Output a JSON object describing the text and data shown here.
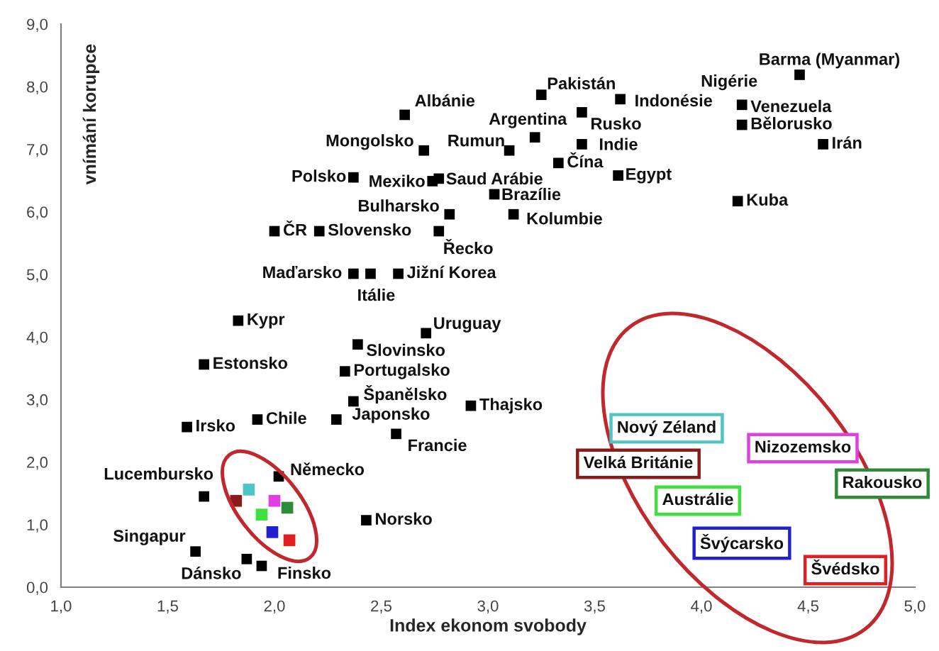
{
  "chart_data": {
    "type": "scatter",
    "xlabel": "Index ekonom svobody",
    "ylabel": "vnímání korupce",
    "xlim": [
      1,
      5
    ],
    "ylim": [
      0,
      9
    ],
    "xticks": [
      {
        "value": 1,
        "label": "1,0"
      },
      {
        "value": 1.5,
        "label": "1,5"
      },
      {
        "value": 2,
        "label": "2,0"
      },
      {
        "value": 2.5,
        "label": "2,5"
      },
      {
        "value": 3,
        "label": "3,0"
      },
      {
        "value": 3.5,
        "label": "3,5"
      },
      {
        "value": 4,
        "label": "4,0"
      },
      {
        "value": 4.5,
        "label": "4,5"
      },
      {
        "value": 5,
        "label": "5,0"
      }
    ],
    "yticks": [
      {
        "value": 0,
        "label": "0,0"
      },
      {
        "value": 1,
        "label": "1,0"
      },
      {
        "value": 2,
        "label": "2,0"
      },
      {
        "value": 3,
        "label": "3,0"
      },
      {
        "value": 4,
        "label": "4,0"
      },
      {
        "value": 5,
        "label": "5,0"
      },
      {
        "value": 6,
        "label": "6,0"
      },
      {
        "value": 7,
        "label": "7,0"
      },
      {
        "value": 8,
        "label": "8,0"
      },
      {
        "value": 9,
        "label": "9,0"
      }
    ],
    "marker": "square",
    "grid": false,
    "legend": false,
    "series": [
      {
        "color": "#000000",
        "x": [
          4.46,
          3.25,
          3.62,
          3.44,
          3.22,
          3.1,
          3.44,
          3.33,
          3.61,
          3.03,
          3.12,
          4.19,
          4.19,
          4.57,
          4.17,
          2.61,
          2.7,
          2.37,
          2.74,
          2.77,
          2.82,
          2.0,
          2.21,
          2.77,
          2.37,
          2.45,
          2.58,
          1.83,
          2.71,
          2.39,
          1.67,
          2.33,
          2.37,
          2.29,
          2.92,
          1.92,
          1.59,
          2.57,
          2.02,
          1.67,
          2.43,
          1.63,
          1.87,
          1.94
        ],
        "values": [
          8.19,
          7.87,
          7.8,
          7.59,
          7.19,
          6.98,
          7.08,
          6.78,
          6.58,
          6.28,
          5.96,
          7.71,
          7.39,
          7.08,
          6.17,
          7.55,
          6.98,
          6.55,
          6.49,
          6.53,
          5.96,
          5.69,
          5.69,
          5.69,
          5.01,
          5.01,
          5.01,
          4.26,
          4.06,
          3.88,
          3.56,
          3.45,
          2.97,
          2.68,
          2.9,
          2.68,
          2.56,
          2.45,
          1.77,
          1.45,
          1.07,
          0.57,
          0.45,
          0.34
        ]
      },
      {
        "colors": [
          "#4fc4c4",
          "#8b1a1a",
          "#e040e0",
          "#2e8b3a",
          "#40e040",
          "#2020d0",
          "#e02020"
        ],
        "x": [
          1.88,
          1.82,
          2.0,
          2.06,
          1.94,
          1.99,
          2.07
        ],
        "values": [
          1.56,
          1.38,
          1.38,
          1.27,
          1.16,
          0.88,
          0.75
        ]
      }
    ],
    "annotations": [
      {
        "text": "Barma (Myanmar)",
        "x": 4.46,
        "y": 8.19
      },
      {
        "text": "Pakistán",
        "x": 3.25,
        "y": 7.87
      },
      {
        "text": "Indonésie",
        "x": 3.62,
        "y": 7.8
      },
      {
        "text": "Rusko",
        "x": 3.44,
        "y": 7.59
      },
      {
        "text": "Argentina",
        "x": 3.22,
        "y": 7.19
      },
      {
        "text": "Rumun",
        "x": 3.1,
        "y": 6.98
      },
      {
        "text": "Indie",
        "x": 3.44,
        "y": 7.08
      },
      {
        "text": "Čína",
        "x": 3.33,
        "y": 6.78
      },
      {
        "text": "Egypt",
        "x": 3.61,
        "y": 6.58
      },
      {
        "text": "Brazílie",
        "x": 3.03,
        "y": 6.28
      },
      {
        "text": "Kolumbie",
        "x": 3.12,
        "y": 5.96
      },
      {
        "text": "Nigérie",
        "x": 4.19,
        "y": 7.73
      },
      {
        "text": "Venezuela",
        "x": 4.19,
        "y": 7.71
      },
      {
        "text": "Bělorusko",
        "x": 4.19,
        "y": 7.39
      },
      {
        "text": "Irán",
        "x": 4.57,
        "y": 7.08
      },
      {
        "text": "Kuba",
        "x": 4.17,
        "y": 6.17
      },
      {
        "text": "Albánie",
        "x": 2.61,
        "y": 7.55
      },
      {
        "text": "Mongolsko",
        "x": 2.7,
        "y": 6.98
      },
      {
        "text": "Polsko",
        "x": 2.37,
        "y": 6.55
      },
      {
        "text": "Mexiko",
        "x": 2.74,
        "y": 6.49
      },
      {
        "text": "Saud Arábie",
        "x": 2.77,
        "y": 6.53
      },
      {
        "text": "Bulharsko",
        "x": 2.82,
        "y": 5.96
      },
      {
        "text": "ČR",
        "x": 2.0,
        "y": 5.69
      },
      {
        "text": "Slovensko",
        "x": 2.21,
        "y": 5.69
      },
      {
        "text": "Řecko",
        "x": 2.77,
        "y": 5.69
      },
      {
        "text": "Maďarsko",
        "x": 2.37,
        "y": 5.01
      },
      {
        "text": "Itálie",
        "x": 2.45,
        "y": 5.01
      },
      {
        "text": "Jižní Korea",
        "x": 2.58,
        "y": 5.01
      },
      {
        "text": "Kypr",
        "x": 1.83,
        "y": 4.26
      },
      {
        "text": "Uruguay",
        "x": 2.71,
        "y": 4.06
      },
      {
        "text": "Slovinsko",
        "x": 2.39,
        "y": 3.88
      },
      {
        "text": "Estonsko",
        "x": 1.67,
        "y": 3.56
      },
      {
        "text": "Portugalsko",
        "x": 2.33,
        "y": 3.45
      },
      {
        "text": "Španělsko",
        "x": 2.37,
        "y": 2.97
      },
      {
        "text": "Japonsko",
        "x": 2.29,
        "y": 2.68
      },
      {
        "text": "Thajsko",
        "x": 2.92,
        "y": 2.9
      },
      {
        "text": "Chile",
        "x": 1.92,
        "y": 2.68
      },
      {
        "text": "Irsko",
        "x": 1.59,
        "y": 2.56
      },
      {
        "text": "Francie",
        "x": 2.57,
        "y": 2.45
      },
      {
        "text": "Německo",
        "x": 2.02,
        "y": 1.77
      },
      {
        "text": "Lucembursko",
        "x": 1.67,
        "y": 1.45
      },
      {
        "text": "Norsko",
        "x": 2.43,
        "y": 1.07
      },
      {
        "text": "Singapur",
        "x": 1.63,
        "y": 0.57
      },
      {
        "text": "Dánsko",
        "x": 1.87,
        "y": 0.45
      },
      {
        "text": "Finsko",
        "x": 1.94,
        "y": 0.34
      },
      "Nový Zéland",
      "Velká Británie",
      "Nizozemsko",
      "Rakousko",
      "Austrálie",
      "Švýcarsko",
      "Švédsko"
    ]
  }
}
